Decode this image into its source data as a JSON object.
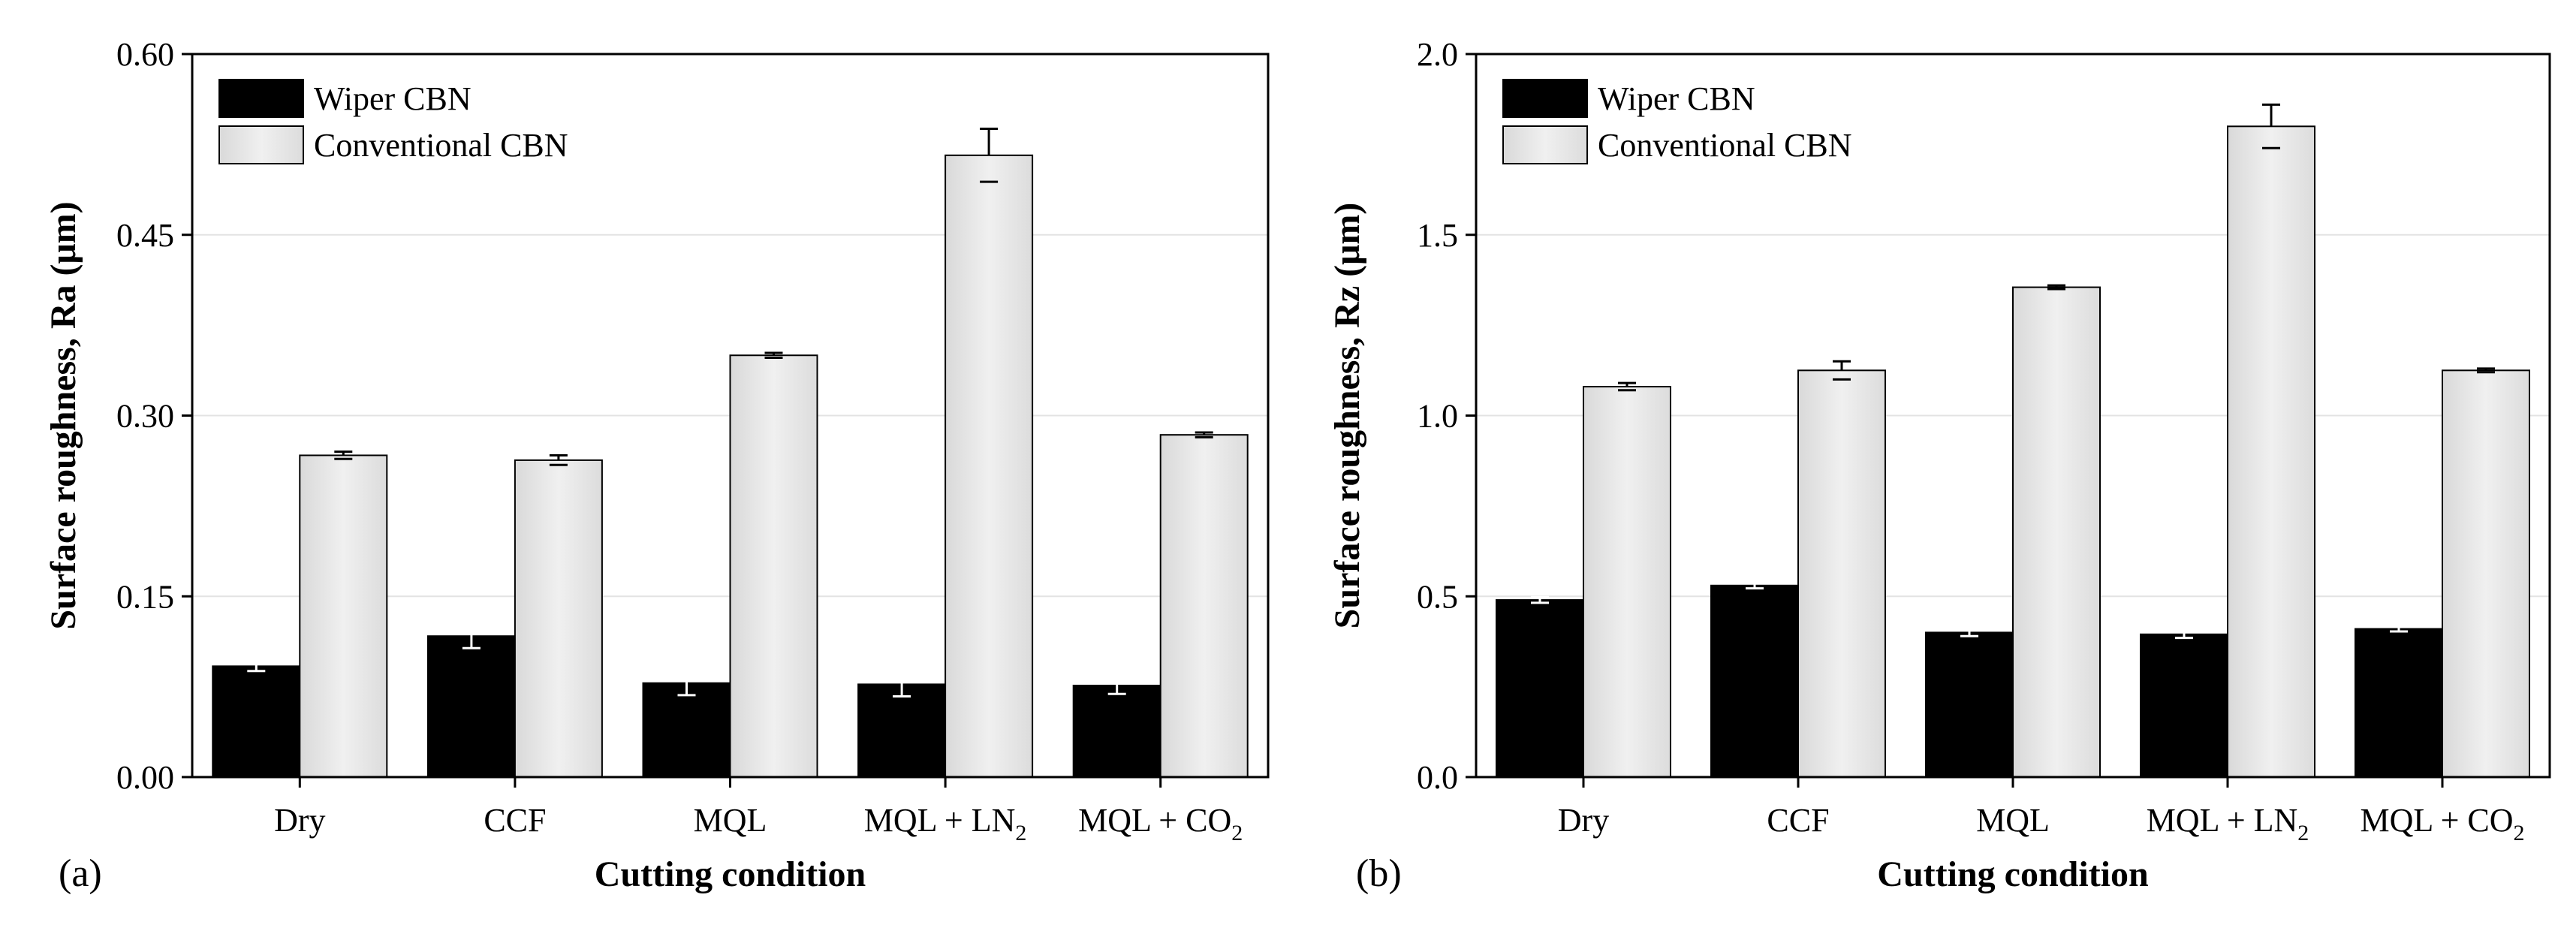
{
  "chart_data": [
    {
      "type": "bar",
      "panel_label": "(a)",
      "title": "",
      "xlabel": "Cutting condition",
      "ylabel": "Surface roughness, Ra (μm)",
      "ylim": [
        0,
        0.6
      ],
      "yticks": [
        0,
        0.15,
        0.3,
        0.45,
        0.6
      ],
      "ytick_labels": [
        "0.00",
        "0.15",
        "0.30",
        "0.45",
        "0.60"
      ],
      "grid": true,
      "legend_position": "top-left",
      "categories": [
        {
          "main": "Dry",
          "sub": ""
        },
        {
          "main": "CCF",
          "sub": ""
        },
        {
          "main": "MQL",
          "sub": ""
        },
        {
          "main": "MQL + LN",
          "sub": "2"
        },
        {
          "main": "MQL + CO",
          "sub": "2"
        }
      ],
      "series": [
        {
          "name": "Wiper CBN",
          "color": "#000000",
          "values": [
            0.092,
            0.117,
            0.078,
            0.077,
            0.076
          ],
          "errors": [
            0.004,
            0.01,
            0.01,
            0.01,
            0.007
          ]
        },
        {
          "name": "Conventional CBN",
          "color": "#e8e8e8",
          "values": [
            0.267,
            0.263,
            0.35,
            0.516,
            0.284
          ],
          "errors": [
            0.003,
            0.004,
            0.002,
            0.022,
            0.002
          ]
        }
      ]
    },
    {
      "type": "bar",
      "panel_label": "(b)",
      "title": "",
      "xlabel": "Cutting condition",
      "ylabel": "Surface roughness, Rz (μm)",
      "ylim": [
        0,
        2.0
      ],
      "yticks": [
        0,
        0.5,
        1.0,
        1.5,
        2.0
      ],
      "ytick_labels": [
        "0.0",
        "0.5",
        "1.0",
        "1.5",
        "2.0"
      ],
      "grid": true,
      "legend_position": "top-left",
      "categories": [
        {
          "main": "Dry",
          "sub": ""
        },
        {
          "main": "CCF",
          "sub": ""
        },
        {
          "main": "MQL",
          "sub": ""
        },
        {
          "main": "MQL + LN",
          "sub": "2"
        },
        {
          "main": "MQL + CO",
          "sub": "2"
        }
      ],
      "series": [
        {
          "name": "Wiper CBN",
          "color": "#000000",
          "values": [
            0.49,
            0.53,
            0.4,
            0.395,
            0.41
          ],
          "errors": [
            0.008,
            0.008,
            0.01,
            0.01,
            0.007
          ]
        },
        {
          "name": "Conventional CBN",
          "color": "#e8e8e8",
          "values": [
            1.08,
            1.125,
            1.355,
            1.8,
            1.125
          ],
          "errors": [
            0.01,
            0.025,
            0.005,
            0.06,
            0.005
          ]
        }
      ]
    }
  ]
}
